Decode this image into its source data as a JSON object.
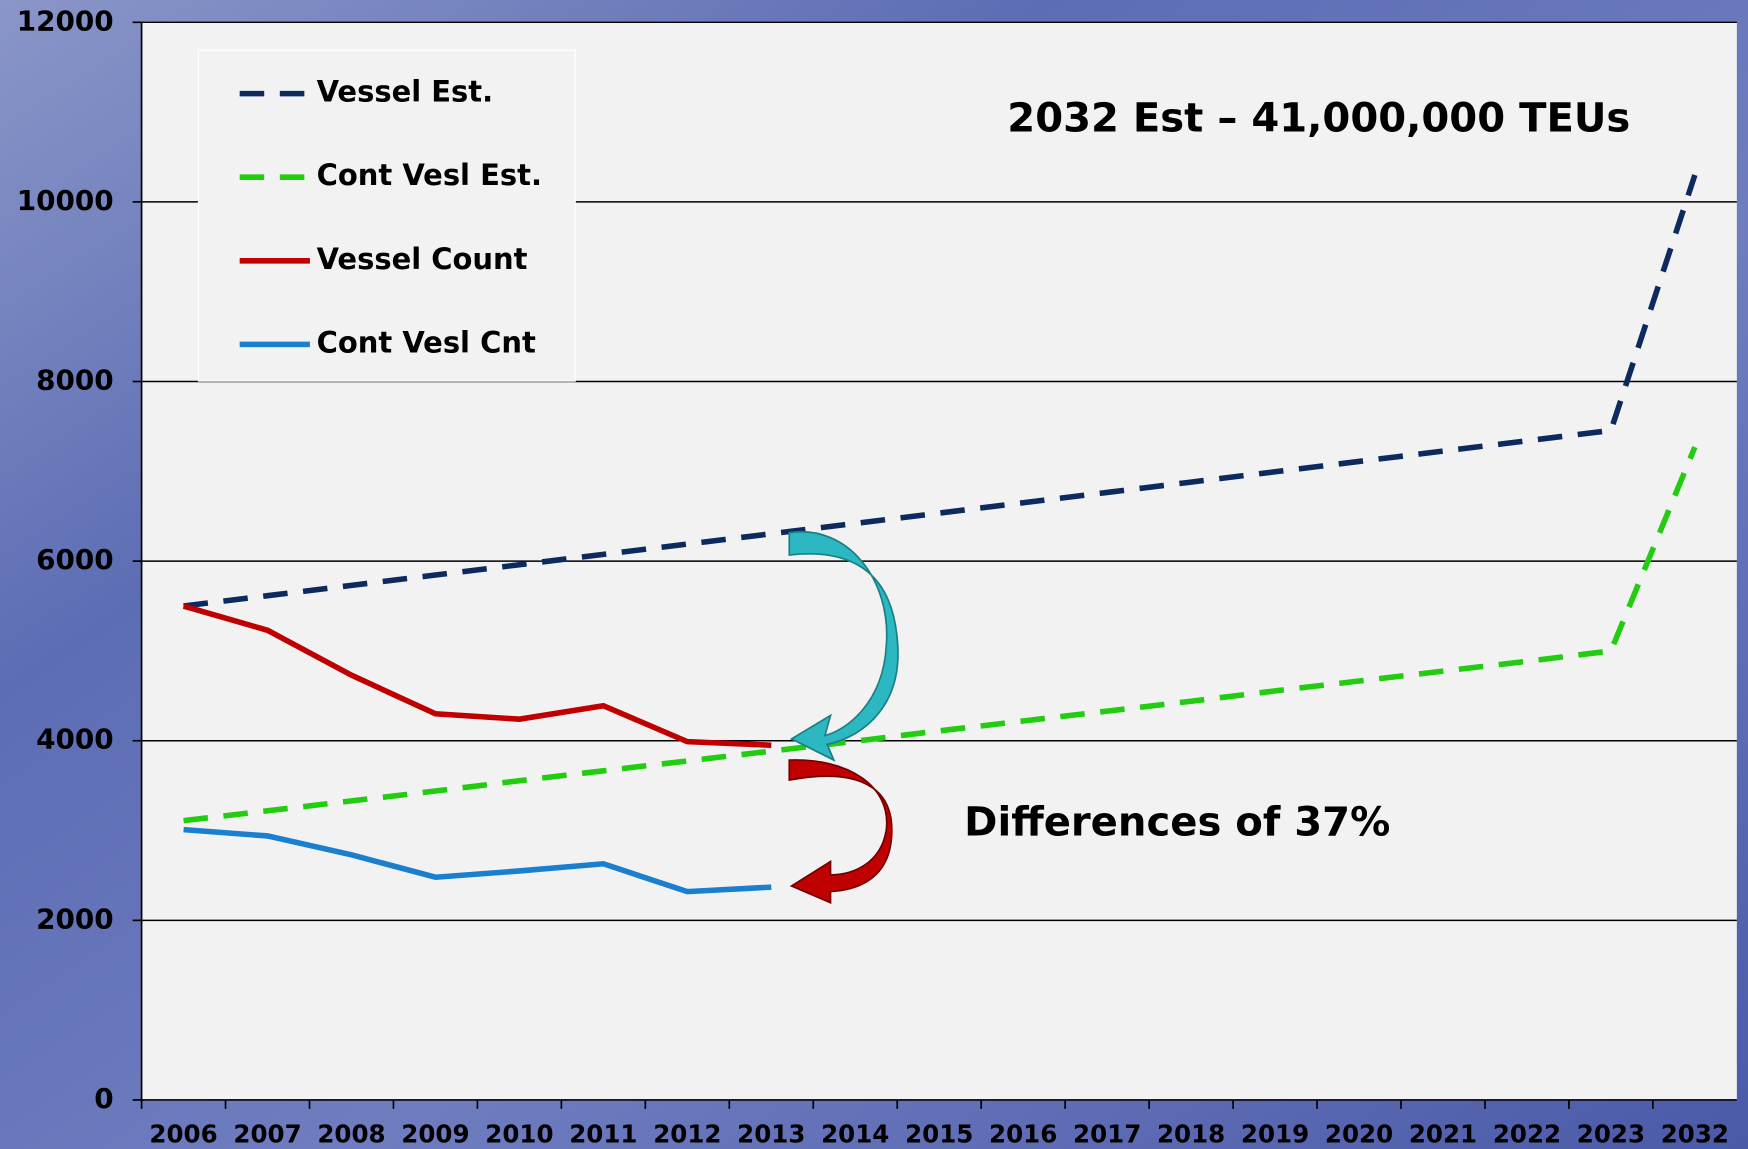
{
  "chart_data": {
    "type": "line",
    "categories": [
      "2006",
      "2007",
      "2008",
      "2009",
      "2010",
      "2011",
      "2012",
      "2013",
      "2014",
      "2015",
      "2016",
      "2017",
      "2018",
      "2019",
      "2020",
      "2021",
      "2022",
      "2023",
      "2032"
    ],
    "series": [
      {
        "name": "Vessel Est.",
        "color": "#0d2a5e",
        "dashed": true,
        "values": [
          5500,
          5615,
          5730,
          5845,
          5960,
          6075,
          6190,
          6305,
          6420,
          6535,
          6650,
          6765,
          6880,
          6995,
          7110,
          7225,
          7340,
          7455,
          10300
        ]
      },
      {
        "name": "Cont Vesl Est.",
        "color": "#22cc11",
        "dashed": true,
        "values": [
          3110,
          3220,
          3330,
          3440,
          3555,
          3665,
          3775,
          3885,
          3995,
          4110,
          4220,
          4330,
          4440,
          4555,
          4665,
          4775,
          4885,
          5000,
          7270
        ]
      },
      {
        "name": "Vessel Count",
        "color": "#c00000",
        "dashed": false,
        "values": [
          5500,
          5230,
          4730,
          4300,
          4240,
          4390,
          3990,
          3950,
          null,
          null,
          null,
          null,
          null,
          null,
          null,
          null,
          null,
          null,
          null
        ]
      },
      {
        "name": "Cont Vesl Cnt",
        "color": "#1a7fcf",
        "dashed": false,
        "values": [
          3010,
          2940,
          2730,
          2480,
          2550,
          2630,
          2320,
          2370,
          null,
          null,
          null,
          null,
          null,
          null,
          null,
          null,
          null,
          null,
          null
        ]
      }
    ],
    "ylim": [
      0,
      12000
    ],
    "yticks": [
      0,
      2000,
      4000,
      6000,
      8000,
      10000,
      12000
    ],
    "grid": true,
    "legend": "upper left",
    "annotations": [
      "2032 Est – 41,000,000 TEUs",
      "Differences of 37%"
    ]
  }
}
